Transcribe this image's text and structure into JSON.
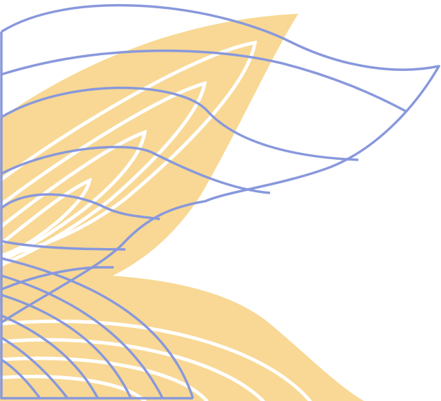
{
  "colors": {
    "background": "#ffffff",
    "fill": "#f8d894",
    "inner_lines": "#ffffff",
    "outline": "#8898dc"
  },
  "icons": [
    "leaf-shape",
    "flag-outline",
    "arc-lines"
  ]
}
